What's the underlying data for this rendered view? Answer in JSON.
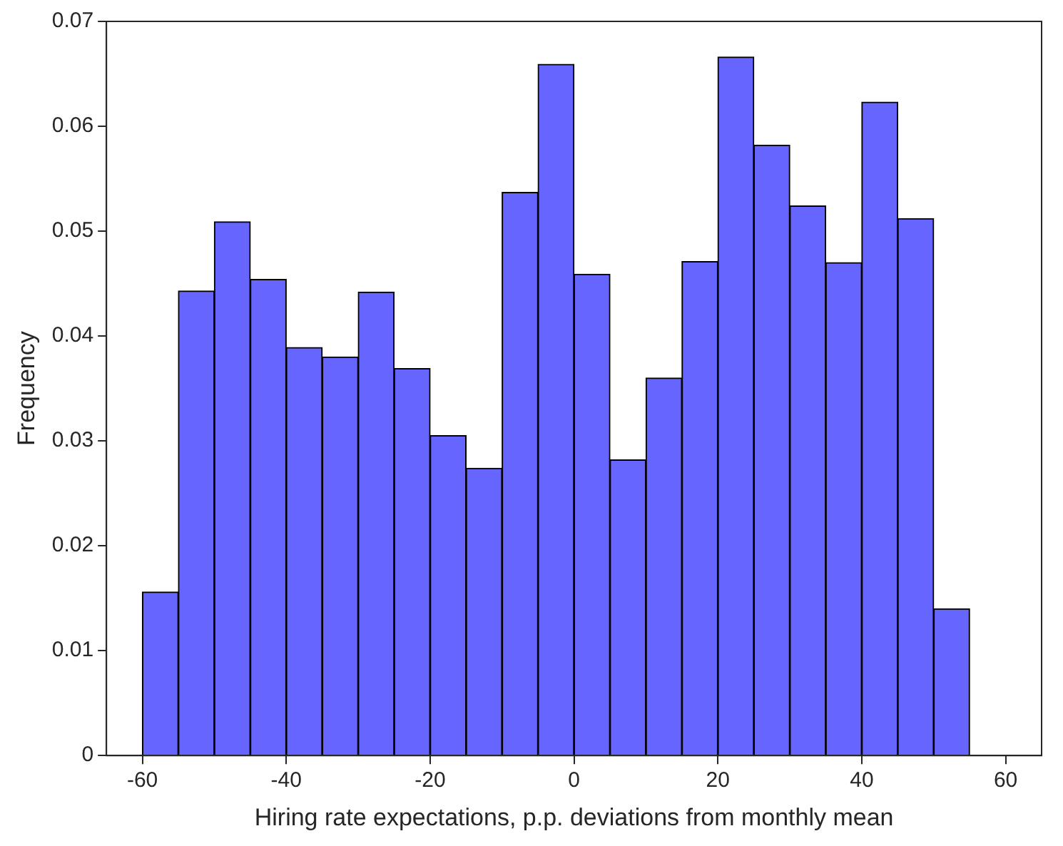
{
  "chart_data": {
    "type": "histogram",
    "xlabel": "Hiring rate expectations, p.p. deviations from monthly mean",
    "ylabel": "Frequency",
    "bins": [
      -60,
      -55,
      -50,
      -45,
      -40,
      -35,
      -30,
      -25,
      -20,
      -15,
      -10,
      -5,
      0,
      5,
      10,
      15,
      20,
      25,
      30,
      35,
      40,
      45,
      50,
      55
    ],
    "values": [
      0.0156,
      0.0443,
      0.0509,
      0.0454,
      0.0389,
      0.038,
      0.0442,
      0.0369,
      0.0305,
      0.0274,
      0.0537,
      0.0659,
      0.0459,
      0.0282,
      0.036,
      0.0471,
      0.0666,
      0.0582,
      0.0524,
      0.047,
      0.0623,
      0.0512,
      0.014
    ],
    "color": "#6666ff",
    "xlim": [
      -65,
      65
    ],
    "xticks": [
      -60,
      -40,
      -20,
      0,
      20,
      40,
      60
    ],
    "ylim": [
      0,
      0.07
    ],
    "yticks": [
      0,
      0.01,
      0.02,
      0.03,
      0.04,
      0.05,
      0.06,
      0.07
    ],
    "grid": false,
    "legend": false
  }
}
